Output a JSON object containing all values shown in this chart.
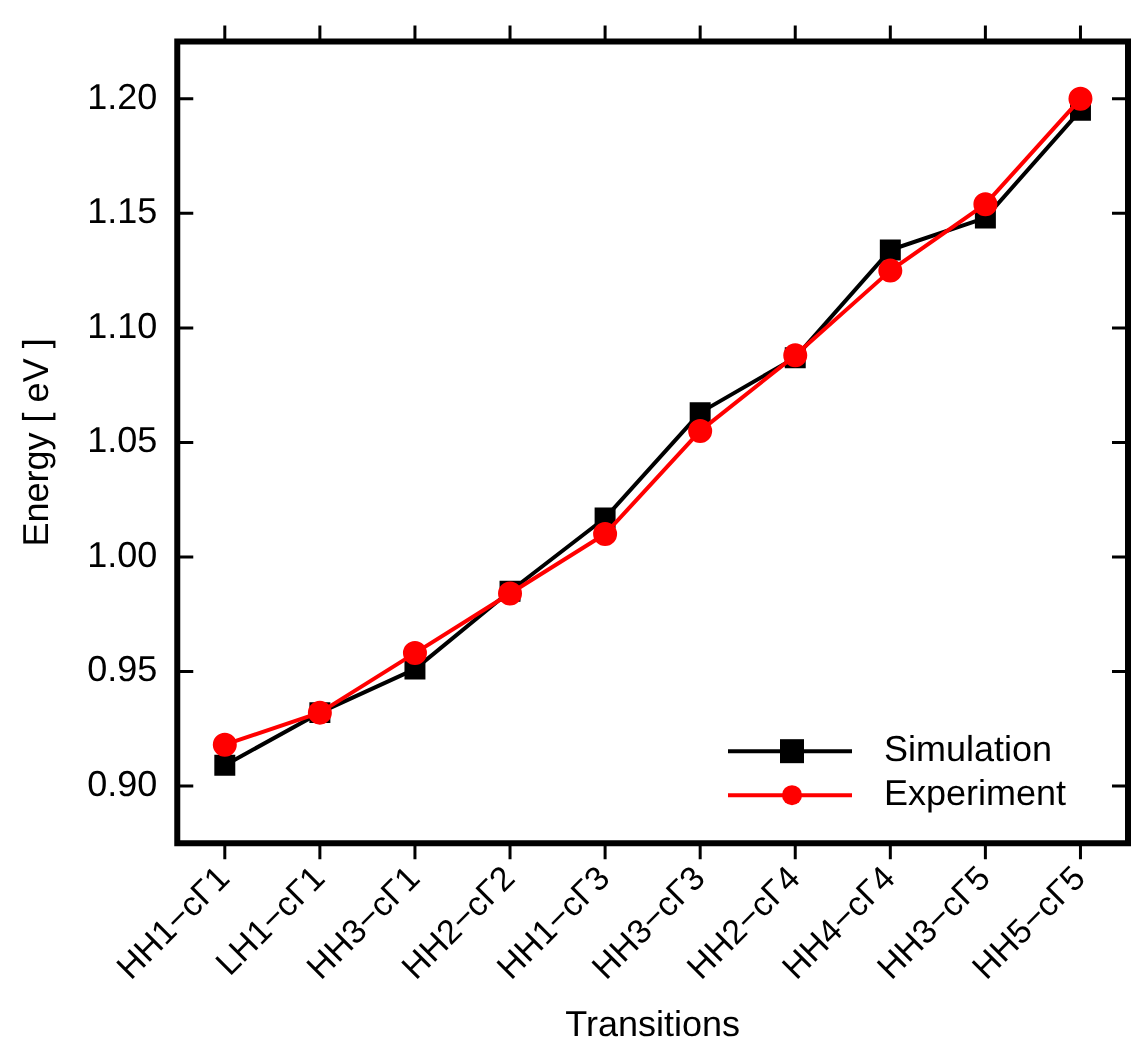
{
  "chart_data": {
    "type": "line",
    "xlabel": "Transitions",
    "ylabel": "Energy [ eV ]",
    "categories": [
      "HH1−cΓ1",
      "LH1−cΓ1",
      "HH3−cΓ1",
      "HH2−cΓ2",
      "HH1−cΓ3",
      "HH3−cΓ3",
      "HH2−cΓ4",
      "HH4−cΓ4",
      "HH3−cΓ5",
      "HH5−cΓ5"
    ],
    "series": [
      {
        "name": "Simulation",
        "color": "#000000",
        "marker": "square",
        "values": [
          0.909,
          0.932,
          0.951,
          0.985,
          1.017,
          1.063,
          1.087,
          1.134,
          1.148,
          1.195
        ]
      },
      {
        "name": "Experiment",
        "color": "#ff0000",
        "marker": "circle",
        "values": [
          0.918,
          0.932,
          0.958,
          0.984,
          1.01,
          1.055,
          1.088,
          1.125,
          1.154,
          1.2
        ]
      }
    ],
    "ylim": [
      0.875,
      1.225
    ],
    "yticks": [
      {
        "value": 0.9,
        "label": "0.90"
      },
      {
        "value": 0.95,
        "label": "0.95"
      },
      {
        "value": 1.0,
        "label": "1.00"
      },
      {
        "value": 1.05,
        "label": "1.05"
      },
      {
        "value": 1.1,
        "label": "1.10"
      },
      {
        "value": 1.15,
        "label": "1.15"
      },
      {
        "value": 1.2,
        "label": "1.20"
      }
    ],
    "grid": false,
    "legend": "bottom right"
  }
}
